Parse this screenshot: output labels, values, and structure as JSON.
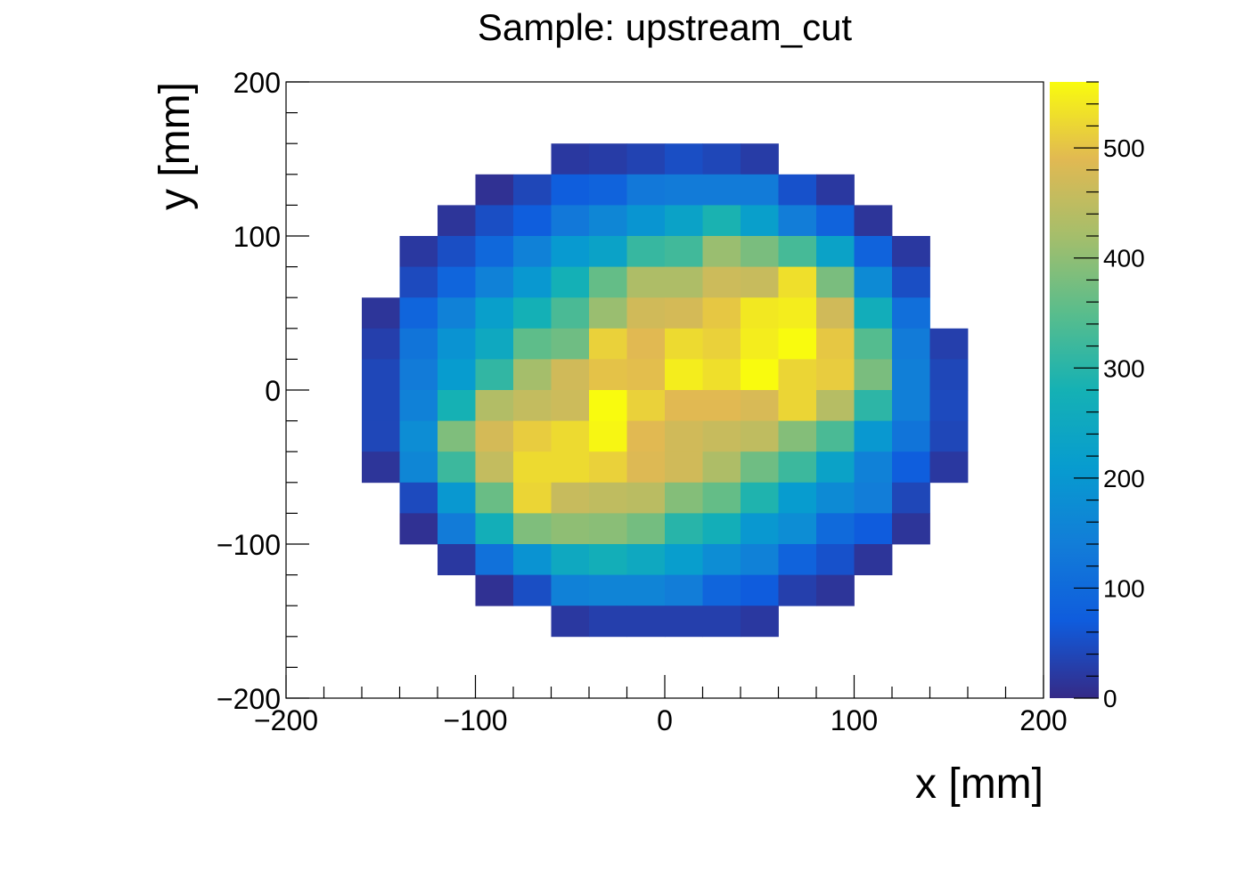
{
  "chart_data": {
    "type": "heatmap",
    "title": "Sample: upstream_cut",
    "xlabel": "x [mm]",
    "ylabel": "y [mm]",
    "xlim": [
      -200,
      200
    ],
    "ylim": [
      -200,
      200
    ],
    "x_ticks": [
      -200,
      -100,
      0,
      100,
      200
    ],
    "y_ticks": [
      -200,
      -100,
      0,
      100,
      200
    ],
    "x_tick_labels": [
      "−200",
      "−100",
      "0",
      "100",
      "200"
    ],
    "y_tick_labels": [
      "−200",
      "−100",
      "0",
      "100",
      "200"
    ],
    "colorbar": {
      "min": 0,
      "max": 560,
      "ticks": [
        0,
        100,
        200,
        300,
        400,
        500
      ],
      "tick_labels": [
        "0",
        "100",
        "200",
        "300",
        "400",
        "500"
      ]
    },
    "grid": false,
    "bin_width": 20,
    "x_bins_lower_edges": [
      -200,
      -180,
      -160,
      -140,
      -120,
      -100,
      -80,
      -60,
      -40,
      -20,
      0,
      20,
      40,
      60,
      80,
      100,
      120,
      140,
      160,
      180
    ],
    "y_bins_upper_edges": [
      200,
      180,
      160,
      140,
      120,
      100,
      80,
      60,
      40,
      20,
      0,
      -20,
      -40,
      -60,
      -80,
      -100,
      -120,
      -140,
      -160,
      -180
    ],
    "z": [
      [
        0,
        0,
        0,
        0,
        0,
        0,
        0,
        0,
        0,
        0,
        0,
        0,
        0,
        0,
        0,
        0,
        0,
        0,
        0,
        0
      ],
      [
        0,
        0,
        0,
        0,
        0,
        0,
        0,
        0,
        0,
        0,
        0,
        0,
        0,
        0,
        0,
        0,
        0,
        0,
        0,
        0
      ],
      [
        0,
        0,
        0,
        0,
        0,
        0,
        0,
        20,
        25,
        35,
        50,
        40,
        25,
        0,
        0,
        0,
        0,
        0,
        0,
        0
      ],
      [
        0,
        0,
        0,
        0,
        0,
        10,
        40,
        75,
        85,
        130,
        135,
        135,
        135,
        55,
        20,
        0,
        0,
        0,
        0,
        0
      ],
      [
        0,
        0,
        0,
        0,
        15,
        50,
        75,
        130,
        160,
        195,
        230,
        285,
        220,
        140,
        85,
        15,
        0,
        0,
        0,
        0
      ],
      [
        0,
        0,
        0,
        20,
        50,
        95,
        150,
        205,
        230,
        315,
        325,
        410,
        380,
        330,
        230,
        85,
        20,
        0,
        0,
        0
      ],
      [
        0,
        0,
        0,
        45,
        90,
        150,
        200,
        275,
        360,
        430,
        430,
        465,
        460,
        530,
        380,
        170,
        50,
        0,
        0,
        0
      ],
      [
        0,
        0,
        15,
        90,
        150,
        220,
        275,
        335,
        410,
        470,
        475,
        505,
        540,
        545,
        470,
        265,
        110,
        0,
        0,
        0
      ],
      [
        0,
        0,
        30,
        120,
        190,
        250,
        355,
        370,
        515,
        490,
        525,
        515,
        545,
        560,
        505,
        345,
        135,
        30,
        0,
        0
      ],
      [
        0,
        0,
        40,
        135,
        210,
        310,
        420,
        470,
        500,
        495,
        545,
        530,
        560,
        520,
        510,
        380,
        145,
        40,
        0,
        0
      ],
      [
        0,
        0,
        40,
        150,
        280,
        435,
        455,
        465,
        560,
        515,
        490,
        490,
        480,
        520,
        440,
        305,
        145,
        45,
        0,
        0
      ],
      [
        0,
        0,
        40,
        175,
        385,
        475,
        510,
        525,
        555,
        490,
        470,
        460,
        450,
        390,
        335,
        200,
        120,
        40,
        0,
        0
      ],
      [
        0,
        0,
        15,
        160,
        320,
        455,
        525,
        525,
        515,
        485,
        470,
        430,
        370,
        320,
        230,
        150,
        75,
        20,
        0,
        0
      ],
      [
        0,
        0,
        0,
        45,
        200,
        365,
        520,
        460,
        450,
        445,
        390,
        360,
        290,
        210,
        170,
        140,
        40,
        0,
        0,
        0
      ],
      [
        0,
        0,
        0,
        10,
        135,
        270,
        385,
        400,
        395,
        375,
        300,
        270,
        200,
        175,
        100,
        70,
        15,
        0,
        0,
        0
      ],
      [
        0,
        0,
        0,
        0,
        20,
        115,
        190,
        250,
        270,
        250,
        215,
        175,
        150,
        85,
        55,
        15,
        0,
        0,
        0,
        0
      ],
      [
        0,
        0,
        0,
        0,
        0,
        10,
        50,
        150,
        155,
        155,
        140,
        90,
        70,
        30,
        15,
        0,
        0,
        0,
        0,
        0
      ],
      [
        0,
        0,
        0,
        0,
        0,
        0,
        0,
        20,
        30,
        30,
        30,
        30,
        20,
        0,
        0,
        0,
        0,
        0,
        0,
        0
      ],
      [
        0,
        0,
        0,
        0,
        0,
        0,
        0,
        0,
        0,
        0,
        0,
        0,
        0,
        0,
        0,
        0,
        0,
        0,
        0,
        0
      ],
      [
        0,
        0,
        0,
        0,
        0,
        0,
        0,
        0,
        0,
        0,
        0,
        0,
        0,
        0,
        0,
        0,
        0,
        0,
        0,
        0
      ]
    ]
  }
}
